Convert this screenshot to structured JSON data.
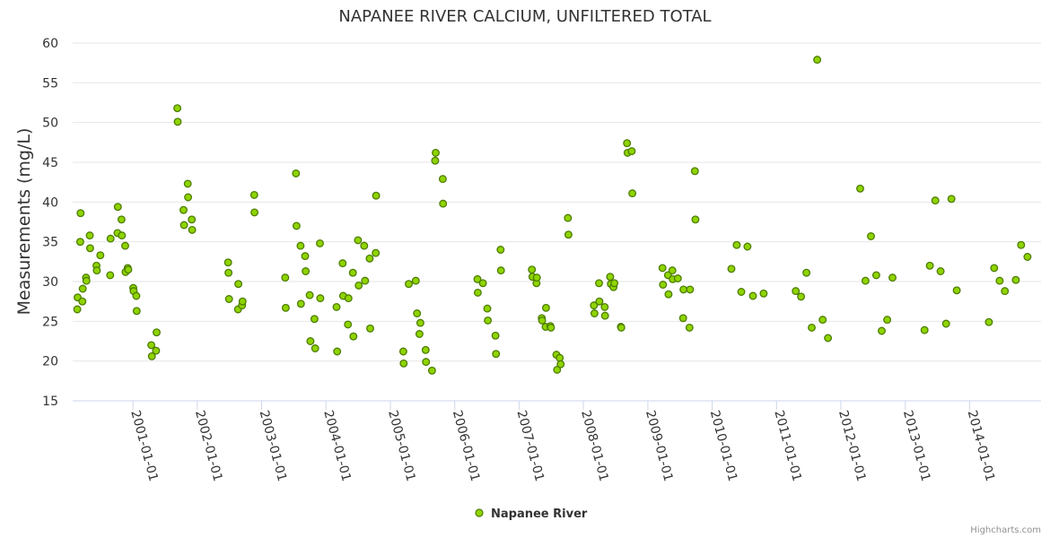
{
  "chart_data": {
    "type": "scatter",
    "title": "NAPANEE RIVER CALCIUM, UNFILTERED TOTAL",
    "ylabel": "Measurements (mg/L)",
    "xlabel": "",
    "ylim": [
      15,
      60
    ],
    "yticks": [
      15,
      20,
      25,
      30,
      35,
      40,
      45,
      50,
      55,
      60
    ],
    "xlim": [
      "2000-01-25",
      "2015-02-10"
    ],
    "xticks": [
      "2001-01-01",
      "2002-01-01",
      "2003-01-01",
      "2004-01-01",
      "2005-01-01",
      "2006-01-01",
      "2007-01-01",
      "2008-01-01",
      "2009-01-01",
      "2010-01-01",
      "2011-01-01",
      "2012-01-01",
      "2013-01-01",
      "2014-01-01"
    ],
    "grid": "horizontal",
    "legend": "bottom-center",
    "series": [
      {
        "name": "Napanee River",
        "color": "#8fd400",
        "border": "#4c7c00",
        "points": [
          [
            "2000-02-20",
            26.5
          ],
          [
            "2000-02-22",
            28.0
          ],
          [
            "2000-03-08",
            35.0
          ],
          [
            "2000-03-10",
            38.6
          ],
          [
            "2000-03-22",
            29.1
          ],
          [
            "2000-03-20",
            27.5
          ],
          [
            "2000-04-10",
            30.5
          ],
          [
            "2000-04-12",
            30.1
          ],
          [
            "2000-05-01",
            35.8
          ],
          [
            "2000-05-03",
            34.2
          ],
          [
            "2000-06-08",
            32.0
          ],
          [
            "2000-06-10",
            31.4
          ],
          [
            "2000-06-30",
            33.3
          ],
          [
            "2000-08-25",
            30.8
          ],
          [
            "2000-08-27",
            35.4
          ],
          [
            "2000-10-05",
            36.1
          ],
          [
            "2000-10-07",
            39.4
          ],
          [
            "2000-10-28",
            37.8
          ],
          [
            "2000-10-30",
            35.8
          ],
          [
            "2000-11-18",
            34.5
          ],
          [
            "2000-11-20",
            31.2
          ],
          [
            "2000-12-02",
            31.7
          ],
          [
            "2000-12-05",
            31.5
          ],
          [
            "2001-01-03",
            29.2
          ],
          [
            "2001-01-05",
            28.8
          ],
          [
            "2001-01-20",
            28.2
          ],
          [
            "2001-01-22",
            26.3
          ],
          [
            "2001-04-15",
            22.0
          ],
          [
            "2001-04-18",
            20.6
          ],
          [
            "2001-05-12",
            21.3
          ],
          [
            "2001-05-15",
            23.6
          ],
          [
            "2001-09-10",
            51.8
          ],
          [
            "2001-09-12",
            50.1
          ],
          [
            "2001-10-15",
            39.0
          ],
          [
            "2001-10-18",
            37.1
          ],
          [
            "2001-11-08",
            42.3
          ],
          [
            "2001-11-10",
            40.6
          ],
          [
            "2001-12-01",
            37.8
          ],
          [
            "2001-12-03",
            36.5
          ],
          [
            "2002-06-25",
            32.4
          ],
          [
            "2002-06-27",
            31.1
          ],
          [
            "2002-06-30",
            27.8
          ],
          [
            "2002-08-20",
            26.5
          ],
          [
            "2002-08-22",
            29.7
          ],
          [
            "2002-09-12",
            27.0
          ],
          [
            "2002-09-15",
            27.5
          ],
          [
            "2002-11-20",
            40.9
          ],
          [
            "2002-11-22",
            38.7
          ],
          [
            "2003-05-15",
            30.5
          ],
          [
            "2003-05-18",
            26.7
          ],
          [
            "2003-07-15",
            43.6
          ],
          [
            "2003-07-18",
            37.0
          ],
          [
            "2003-08-10",
            34.5
          ],
          [
            "2003-08-12",
            27.2
          ],
          [
            "2003-09-05",
            33.2
          ],
          [
            "2003-09-08",
            31.3
          ],
          [
            "2003-10-01",
            28.3
          ],
          [
            "2003-10-05",
            22.5
          ],
          [
            "2003-11-01",
            21.6
          ],
          [
            "2003-10-28",
            25.3
          ],
          [
            "2003-11-28",
            34.8
          ],
          [
            "2003-11-30",
            27.9
          ],
          [
            "2004-03-01",
            26.8
          ],
          [
            "2004-03-05",
            21.2
          ],
          [
            "2004-04-05",
            32.3
          ],
          [
            "2004-04-08",
            28.2
          ],
          [
            "2004-05-05",
            24.6
          ],
          [
            "2004-05-08",
            27.9
          ],
          [
            "2004-06-02",
            31.1
          ],
          [
            "2004-06-05",
            23.1
          ],
          [
            "2004-07-01",
            35.2
          ],
          [
            "2004-07-05",
            29.5
          ],
          [
            "2004-08-05",
            34.5
          ],
          [
            "2004-08-10",
            30.1
          ],
          [
            "2004-09-05",
            32.9
          ],
          [
            "2004-09-08",
            24.1
          ],
          [
            "2004-10-10",
            33.6
          ],
          [
            "2004-10-12",
            40.8
          ],
          [
            "2005-03-15",
            21.2
          ],
          [
            "2005-03-17",
            19.7
          ],
          [
            "2005-04-15",
            29.7
          ],
          [
            "2005-05-25",
            30.1
          ],
          [
            "2005-06-01",
            26.0
          ],
          [
            "2005-06-20",
            24.8
          ],
          [
            "2005-06-15",
            23.4
          ],
          [
            "2005-07-20",
            21.4
          ],
          [
            "2005-07-22",
            19.9
          ],
          [
            "2005-08-25",
            18.8
          ],
          [
            "2005-09-15",
            46.2
          ],
          [
            "2005-09-12",
            45.2
          ],
          [
            "2005-10-25",
            42.9
          ],
          [
            "2005-10-27",
            39.8
          ],
          [
            "2006-05-10",
            30.3
          ],
          [
            "2006-05-12",
            28.6
          ],
          [
            "2006-06-10",
            29.8
          ],
          [
            "2006-07-05",
            26.6
          ],
          [
            "2006-07-08",
            25.1
          ],
          [
            "2006-08-20",
            23.2
          ],
          [
            "2006-08-23",
            20.9
          ],
          [
            "2006-09-18",
            34.0
          ],
          [
            "2006-09-20",
            31.4
          ],
          [
            "2007-03-15",
            31.5
          ],
          [
            "2007-03-18",
            30.6
          ],
          [
            "2007-04-10",
            29.8
          ],
          [
            "2007-04-12",
            30.5
          ],
          [
            "2007-05-10",
            25.4
          ],
          [
            "2007-05-12",
            25.1
          ],
          [
            "2007-06-01",
            24.3
          ],
          [
            "2007-06-03",
            26.7
          ],
          [
            "2007-06-28",
            24.4
          ],
          [
            "2007-07-01",
            24.2
          ],
          [
            "2007-08-01",
            20.8
          ],
          [
            "2007-08-05",
            18.9
          ],
          [
            "2007-08-20",
            20.4
          ],
          [
            "2007-08-25",
            19.6
          ],
          [
            "2007-10-05",
            38.0
          ],
          [
            "2007-10-08",
            35.9
          ],
          [
            "2008-03-01",
            27.0
          ],
          [
            "2008-03-04",
            26.0
          ],
          [
            "2008-03-30",
            29.8
          ],
          [
            "2008-04-01",
            27.5
          ],
          [
            "2008-05-01",
            26.8
          ],
          [
            "2008-05-03",
            25.7
          ],
          [
            "2008-06-01",
            30.6
          ],
          [
            "2008-06-05",
            29.7
          ],
          [
            "2008-06-20",
            29.3
          ],
          [
            "2008-06-25",
            29.8
          ],
          [
            "2008-08-01",
            24.3
          ],
          [
            "2008-08-03",
            24.2
          ],
          [
            "2008-09-05",
            47.4
          ],
          [
            "2008-09-08",
            46.2
          ],
          [
            "2008-10-01",
            46.4
          ],
          [
            "2008-10-05",
            41.1
          ],
          [
            "2009-03-25",
            31.7
          ],
          [
            "2009-03-28",
            29.6
          ],
          [
            "2009-04-25",
            30.8
          ],
          [
            "2009-04-28",
            28.4
          ],
          [
            "2009-05-20",
            31.4
          ],
          [
            "2009-05-22",
            30.3
          ],
          [
            "2009-06-20",
            30.4
          ],
          [
            "2009-07-20",
            25.4
          ],
          [
            "2009-07-22",
            29.0
          ],
          [
            "2009-08-25",
            24.2
          ],
          [
            "2009-08-28",
            29.0
          ],
          [
            "2009-09-25",
            43.9
          ],
          [
            "2009-09-28",
            37.8
          ],
          [
            "2010-04-20",
            31.6
          ],
          [
            "2010-05-20",
            34.6
          ],
          [
            "2010-06-15",
            28.7
          ],
          [
            "2010-07-20",
            34.4
          ],
          [
            "2010-08-20",
            28.2
          ],
          [
            "2010-10-20",
            28.5
          ],
          [
            "2011-04-20",
            28.8
          ],
          [
            "2011-05-20",
            28.1
          ],
          [
            "2011-06-20",
            31.1
          ],
          [
            "2011-07-20",
            24.2
          ],
          [
            "2011-08-20",
            57.9
          ],
          [
            "2011-09-20",
            25.2
          ],
          [
            "2011-10-20",
            22.9
          ],
          [
            "2012-04-20",
            41.7
          ],
          [
            "2012-05-20",
            30.1
          ],
          [
            "2012-06-20",
            35.7
          ],
          [
            "2012-07-20",
            30.8
          ],
          [
            "2012-08-20",
            23.8
          ],
          [
            "2012-09-20",
            25.2
          ],
          [
            "2012-10-20",
            30.5
          ],
          [
            "2013-04-20",
            23.9
          ],
          [
            "2013-05-20",
            32.0
          ],
          [
            "2013-06-20",
            40.2
          ],
          [
            "2013-07-20",
            31.3
          ],
          [
            "2013-08-20",
            24.7
          ],
          [
            "2013-09-20",
            40.4
          ],
          [
            "2013-10-20",
            28.9
          ],
          [
            "2014-04-20",
            24.9
          ],
          [
            "2014-05-20",
            31.7
          ],
          [
            "2014-06-20",
            30.1
          ],
          [
            "2014-07-20",
            28.8
          ],
          [
            "2014-09-20",
            30.2
          ],
          [
            "2014-10-20",
            34.6
          ],
          [
            "2014-11-25",
            33.1
          ]
        ]
      }
    ],
    "credits": "Highcharts.com"
  }
}
